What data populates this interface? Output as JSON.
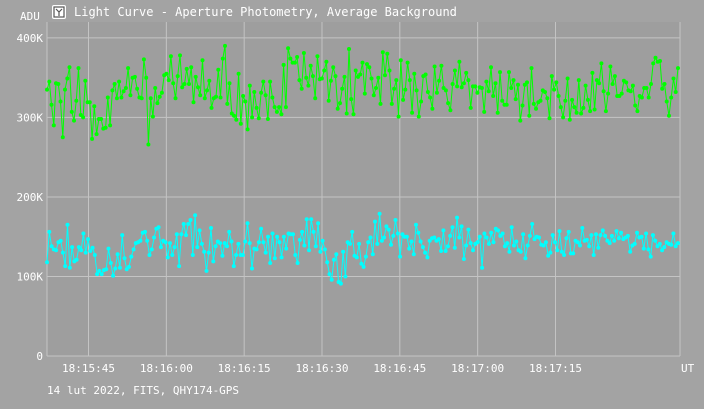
{
  "window": {
    "title": "Light Curve - Aperture Photometry, Average Background",
    "icon": "photometry-app-icon"
  },
  "footer": {
    "text": "14 lut 2022, FITS, QHY174-GPS"
  },
  "colors": {
    "background": "#a3a3a3",
    "plot_background": "#9e9e9e",
    "grid": "#c4c4c4",
    "axis_text": "#ffffff",
    "series_1": "#00ff00",
    "series_2": "#00ffff"
  },
  "chart_data": {
    "type": "line",
    "title": "Light Curve - Aperture Photometry, Average Background",
    "xlabel": "UT",
    "ylabel": "ADU",
    "grid": true,
    "x_range": [
      "18:15:37",
      "18:17:39"
    ],
    "ylim": [
      0,
      420000
    ],
    "yticks": [
      0,
      100000,
      200000,
      300000,
      400000
    ],
    "ytick_labels": [
      "0",
      "100K",
      "200K",
      "300K",
      "400K"
    ],
    "xticks": [
      "18:15:45",
      "18:16:00",
      "18:16:15",
      "18:16:30",
      "18:16:45",
      "18:17:00",
      "18:17:15"
    ],
    "marker": "dot",
    "series": [
      {
        "values": [
          335000,
          345000,
          316000,
          290000,
          343000,
          342000,
          320000,
          275000,
          335000,
          349000,
          363000,
          307000,
          296000,
          321000,
          362000,
          303000,
          300000,
          346000,
          319000,
          319000,
          273000,
          314000,
          279000,
          298000,
          298000,
          286000,
          287000,
          325000,
          290000,
          334000,
          342000,
          324000,
          345000,
          325000,
          333000,
          337000,
          362000,
          328000,
          350000,
          351000,
          336000,
          325000,
          324000,
          373000,
          350000,
          266000,
          324000,
          301000,
          337000,
          318000,
          326000,
          331000,
          353000,
          355000,
          347000,
          377000,
          343000,
          324000,
          352000,
          378000,
          338000,
          342000,
          361000,
          342000,
          363000,
          319000,
          351000,
          338000,
          328000,
          372000,
          324000,
          334000,
          346000,
          312000,
          324000,
          326000,
          360000,
          325000,
          374000,
          390000,
          317000,
          343000,
          305000,
          302000,
          297000,
          355000,
          292000,
          327000,
          320000,
          285000,
          340000,
          300000,
          332000,
          312000,
          299000,
          331000,
          345000,
          328000,
          298000,
          345000,
          325000,
          313000,
          307000,
          313000,
          304000,
          366000,
          313000,
          387000,
          374000,
          369000,
          369000,
          376000,
          347000,
          336000,
          381000,
          350000,
          340000,
          365000,
          352000,
          324000,
          377000,
          348000,
          349000,
          359000,
          370000,
          321000,
          346000,
          363000,
          352000,
          311000,
          318000,
          336000,
          351000,
          305000,
          386000,
          323000,
          304000,
          359000,
          351000,
          354000,
          369000,
          330000,
          367000,
          363000,
          349000,
          328000,
          337000,
          350000,
          317000,
          382000,
          353000,
          380000,
          359000,
          317000,
          336000,
          347000,
          301000,
          372000,
          322000,
          335000,
          369000,
          347000,
          306000,
          355000,
          334000,
          301000,
          320000,
          352000,
          354000,
          332000,
          325000,
          311000,
          364000,
          331000,
          346000,
          365000,
          337000,
          334000,
          318000,
          309000,
          342000,
          359000,
          339000,
          370000,
          338000,
          343000,
          356000,
          347000,
          312000,
          339000,
          339000,
          331000,
          338000,
          337000,
          307000,
          345000,
          333000,
          363000,
          327000,
          343000,
          306000,
          357000,
          321000,
          316000,
          316000,
          357000,
          337000,
          347000,
          323000,
          341000,
          296000,
          315000,
          341000,
          344000,
          302000,
          362000,
          317000,
          311000,
          319000,
          321000,
          334000,
          332000,
          324000,
          299000,
          352000,
          335000,
          344000,
          327000,
          313000,
          300000,
          321000,
          349000,
          297000,
          322000,
          313000,
          306000,
          347000,
          305000,
          312000,
          340000,
          322000,
          308000,
          356000,
          310000,
          347000,
          343000,
          368000,
          333000,
          308000,
          330000,
          364000,
          342000,
          352000,
          327000,
          327000,
          330000,
          346000,
          344000,
          334000,
          333000,
          340000,
          315000,
          308000,
          327000,
          325000,
          337000,
          337000,
          325000,
          342000,
          368000,
          375000,
          370000,
          371000,
          336000,
          342000,
          320000,
          302000,
          325000,
          349000,
          332000,
          362000
        ],
        "color": "#00ff00"
      },
      {
        "values": [
          118000,
          156000,
          138000,
          134000,
          133000,
          143000,
          145000,
          130000,
          113000,
          165000,
          111000,
          137000,
          119000,
          121000,
          137000,
          133000,
          154000,
          130000,
          147000,
          132000,
          136000,
          127000,
          103000,
          107000,
          103000,
          108000,
          109000,
          135000,
          117000,
          101000,
          110000,
          128000,
          111000,
          152000,
          123000,
          109000,
          112000,
          125000,
          134000,
          142000,
          143000,
          145000,
          155000,
          156000,
          145000,
          127000,
          134000,
          149000,
          160000,
          162000,
          137000,
          145000,
          143000,
          124000,
          142000,
          127000,
          137000,
          153000,
          113000,
          153000,
          166000,
          152000,
          166000,
          171000,
          127000,
          177000,
          137000,
          158000,
          141000,
          131000,
          107000,
          130000,
          161000,
          119000,
          138000,
          144000,
          142000,
          126000,
          142000,
          138000,
          156000,
          144000,
          113000,
          127000,
          141000,
          127000,
          127000,
          144000,
          167000,
          142000,
          110000,
          135000,
          134000,
          143000,
          160000,
          143000,
          130000,
          150000,
          117000,
          154000,
          123000,
          150000,
          143000,
          124000,
          150000,
          135000,
          154000,
          153000,
          153000,
          127000,
          117000,
          146000,
          156000,
          139000,
          172000,
          133000,
          172000,
          156000,
          138000,
          167000,
          131000,
          145000,
          134000,
          118000,
          103000,
          96000,
          121000,
          128000,
          93000,
          91000,
          131000,
          100000,
          143000,
          141000,
          156000,
          126000,
          124000,
          141000,
          116000,
          112000,
          125000,
          143000,
          149000,
          128000,
          169000,
          141000,
          179000,
          145000,
          149000,
          163000,
          159000,
          140000,
          151000,
          171000,
          154000,
          125000,
          153000,
          150000,
          150000,
          135000,
          144000,
          128000,
          165000,
          155000,
          144000,
          137000,
          130000,
          124000,
          145000,
          148000,
          149000,
          145000,
          147000,
          132000,
          158000,
          132000,
          138000,
          151000,
          162000,
          136000,
          174000,
          149000,
          163000,
          122000,
          139000,
          159000,
          142000,
          133000,
          141000,
          143000,
          150000,
          111000,
          154000,
          149000,
          141000,
          155000,
          143000,
          160000,
          158000,
          151000,
          154000,
          138000,
          142000,
          131000,
          162000,
          139000,
          144000,
          133000,
          131000,
          153000,
          123000,
          139000,
          151000,
          166000,
          147000,
          150000,
          149000,
          140000,
          139000,
          143000,
          126000,
          130000,
          152000,
          143000,
          133000,
          157000,
          131000,
          127000,
          148000,
          156000,
          129000,
          129000,
          145000,
          143000,
          139000,
          161000,
          145000,
          146000,
          138000,
          152000,
          127000,
          153000,
          136000,
          152000,
          158000,
          151000,
          145000,
          142000,
          151000,
          145000,
          157000,
          148000,
          155000,
          147000,
          149000,
          151000,
          131000,
          139000,
          141000,
          155000,
          149000,
          150000,
          135000,
          154000,
          134000,
          125000,
          152000,
          145000,
          138000,
          141000,
          133000,
          137000,
          143000,
          141000,
          140000,
          154000,
          138000,
          142000
        ],
        "color": "#00ffff"
      }
    ]
  }
}
